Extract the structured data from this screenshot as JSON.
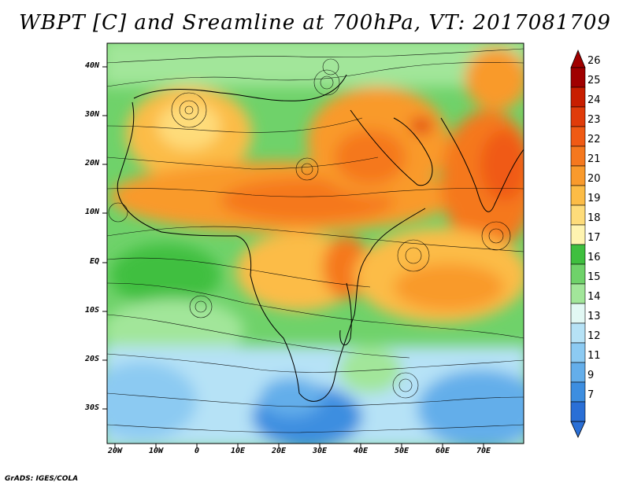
{
  "title": "WBPT [C] and Sreamline at 700hPa, VT: 2017081709",
  "credit": "GrADS: IGES/COLA",
  "lat_labels": [
    "40N",
    "30N",
    "20N",
    "10N",
    "EQ",
    "10S",
    "20S",
    "30S"
  ],
  "lon_labels": [
    "20W",
    "10W",
    "0",
    "10E",
    "20E",
    "30E",
    "40E",
    "50E",
    "60E",
    "70E"
  ],
  "colorbar": {
    "labels": [
      "26",
      "25",
      "24",
      "23",
      "22",
      "21",
      "20",
      "19",
      "18",
      "17",
      "16",
      "15",
      "14",
      "13",
      "12",
      "11",
      "9",
      "7"
    ],
    "colors": [
      "#a00000",
      "#c81e00",
      "#e03c0a",
      "#f05a14",
      "#f5781e",
      "#f99a2c",
      "#fcbc46",
      "#fedc7a",
      "#fff4b0",
      "#3fbf3f",
      "#6fd26a",
      "#a2e69a",
      "#e2f8f4",
      "#b6e2f6",
      "#8ccaf2",
      "#64aeea",
      "#3d8ee0",
      "#2a6fd6"
    ]
  }
}
